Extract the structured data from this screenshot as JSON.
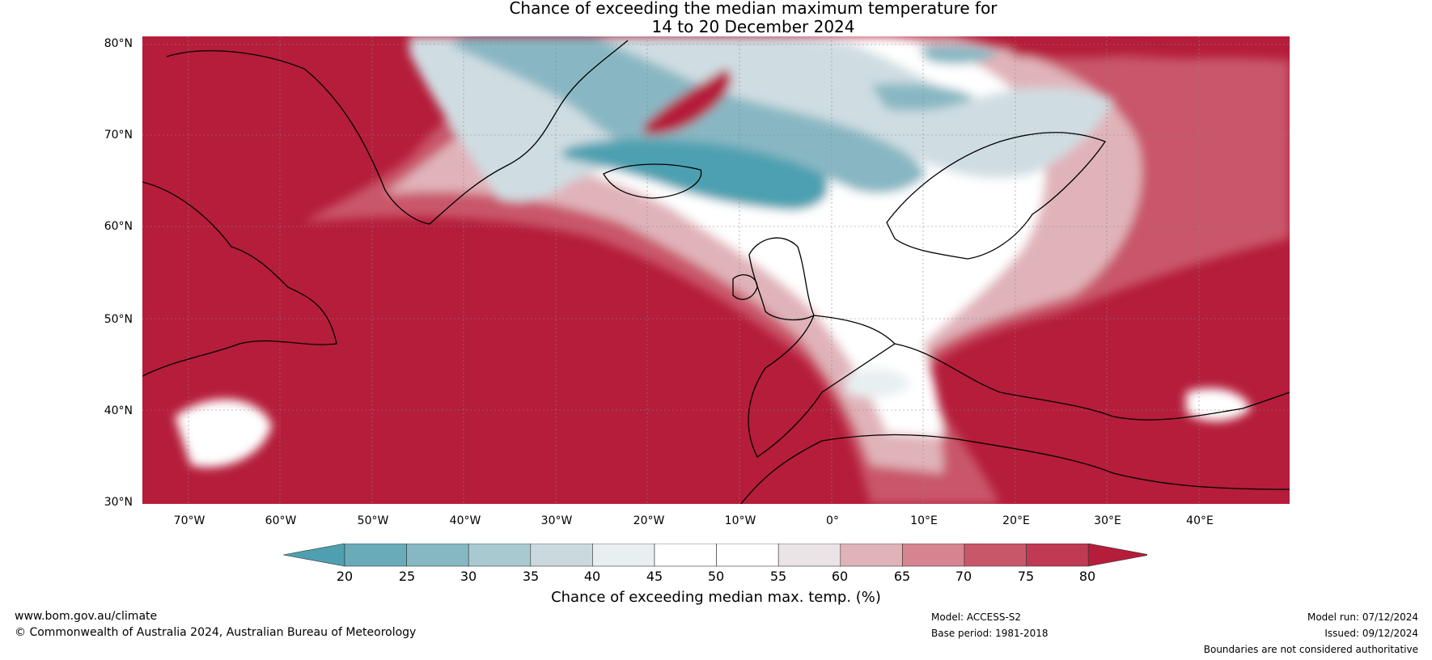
{
  "title": {
    "line1": "Chance of exceeding the median maximum temperature for",
    "line2": "14 to 20 December 2024"
  },
  "map": {
    "lat_labels": [
      "80°N",
      "70°N",
      "60°N",
      "50°N",
      "40°N",
      "30°N"
    ],
    "lon_labels": [
      "70°W",
      "60°W",
      "50°W",
      "40°W",
      "30°W",
      "20°W",
      "10°W",
      "0°",
      "10°E",
      "20°E",
      "30°E",
      "40°E"
    ],
    "extent": {
      "lon": [
        -75,
        50
      ],
      "lat": [
        30,
        80
      ]
    },
    "grid": true,
    "colors": {
      "very_high": "#b51d3a",
      "high": "#c9576a",
      "mid_high": "#e0b3b9",
      "neutral": "#ffffff",
      "mid_low": "#cfdde2",
      "low": "#88b7c3",
      "very_low": "#4ea0b1",
      "coast": "#000000",
      "border": "#888888"
    }
  },
  "colorbar": {
    "ticks": [
      "20",
      "25",
      "30",
      "35",
      "40",
      "45",
      "50",
      "55",
      "60",
      "65",
      "70",
      "75",
      "80"
    ],
    "colors": [
      "#4ea0b1",
      "#6aabb9",
      "#86b8c3",
      "#a8c9d0",
      "#c9d9dd",
      "#e8eff1",
      "#ffffff",
      "#ffffff",
      "#ebe4e6",
      "#e0b3b9",
      "#d68490",
      "#c9576a",
      "#bf3a52",
      "#b51d3a"
    ],
    "label": "Chance of exceeding median max. temp. (%)"
  },
  "footer": {
    "website": "www.bom.gov.au/climate",
    "copyright": "© Commonwealth of Australia 2024, Australian Bureau of Meteorology",
    "model": "Model: ACCESS-S2",
    "base_period": "Base period: 1981-2018",
    "model_run": "Model run: 07/12/2024",
    "issued": "Issued: 09/12/2024",
    "disclaimer": "Boundaries are not considered authoritative"
  }
}
